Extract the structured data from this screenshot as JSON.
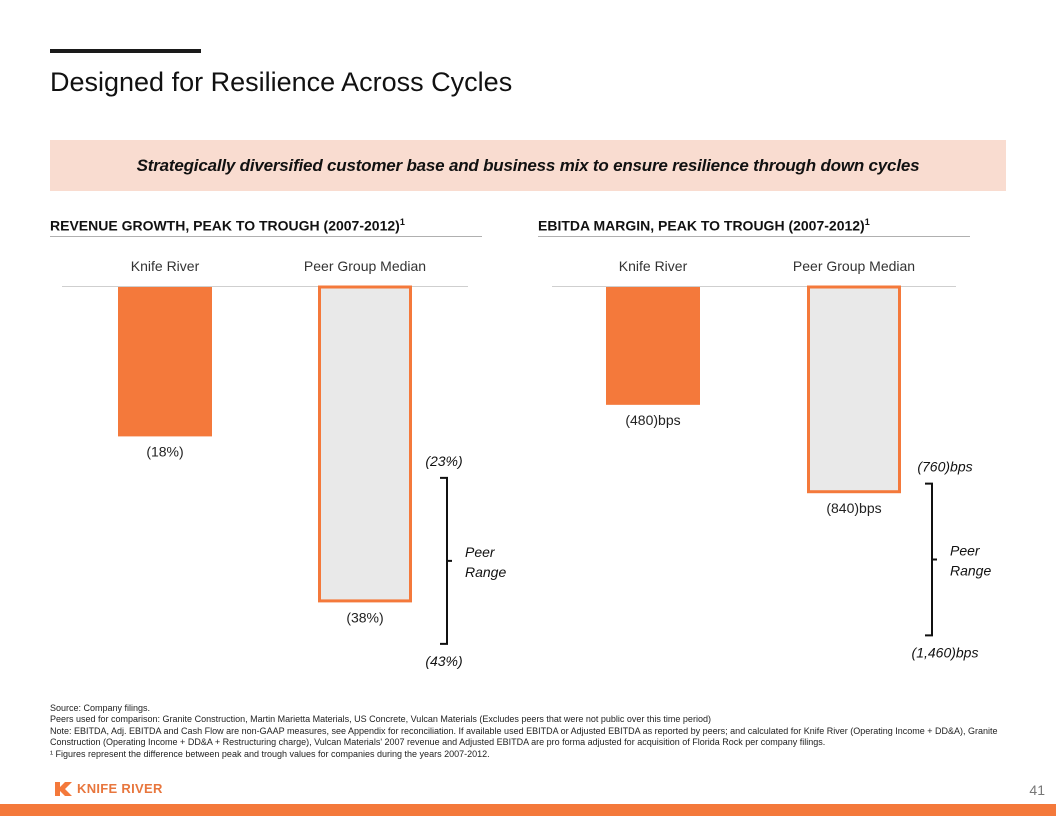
{
  "page": {
    "title": "Designed for Resilience Across Cycles",
    "banner": "Strategically diversified customer base and business mix to ensure resilience through down cycles",
    "page_number": "41",
    "logo_text": "KNIFE RIVER",
    "footnotes": [
      "Source: Company filings.",
      "Peers used for comparison: Granite Construction, Martin Marietta Materials, US Concrete, Vulcan Materials (Excludes peers that were not public over this time period)",
      "Note: EBITDA, Adj. EBITDA and Cash Flow are non-GAAP measures, see Appendix for reconciliation. If available used EBITDA or Adjusted EBITDA as reported by peers; and calculated for Knife River (Operating Income + DD&A), Granite Construction (Operating Income + DD&A + Restructuring charge), Vulcan Materials' 2007 revenue and Adjusted EBITDA are pro forma adjusted for acquisition of Florida Rock per company filings.",
      "¹ Figures represent the difference between peak and trough values for companies during the years 2007-2012."
    ]
  },
  "colors": {
    "accent": "#f4793b",
    "banner_bg": "#f9dcd0",
    "peer_fill": "#e9e9e9"
  },
  "chart_data": [
    {
      "type": "bar",
      "title": "REVENUE GROWTH, PEAK TO TROUGH (2007-2012)",
      "title_sup": "1",
      "categories": [
        "Knife River",
        "Peer Group Median"
      ],
      "values": [
        -18,
        -38
      ],
      "value_labels": [
        "(18%)",
        "(38%)"
      ],
      "range": {
        "high": -23,
        "low": -43,
        "high_label": "(23%)",
        "low_label": "(43%)",
        "label": "Peer Range"
      },
      "ylim": [
        -43,
        0
      ]
    },
    {
      "type": "bar",
      "title": "EBITDA MARGIN, PEAK TO TROUGH (2007-2012)",
      "title_sup": "1",
      "categories": [
        "Knife River",
        "Peer Group Median"
      ],
      "values": [
        -480,
        -840
      ],
      "value_labels": [
        "(480)bps",
        "(840)bps"
      ],
      "range": {
        "high": -760,
        "low": -1460,
        "high_label": "(760)bps",
        "low_label": "(1,460)bps",
        "label": "Peer Range"
      },
      "ylim": [
        -1460,
        0
      ]
    }
  ]
}
